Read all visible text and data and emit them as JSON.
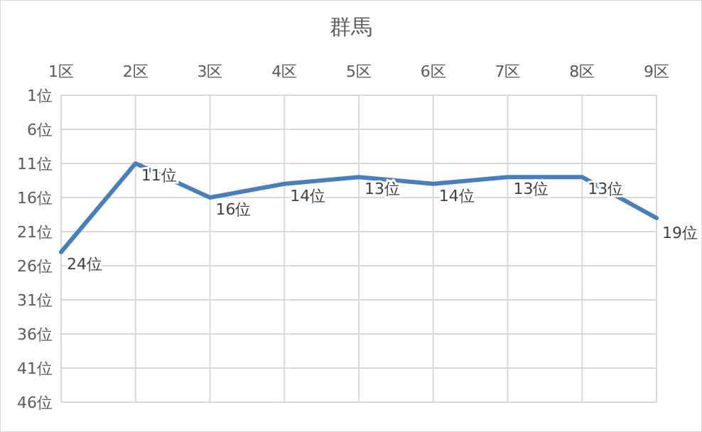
{
  "chart_data": {
    "type": "line",
    "title": "群馬",
    "categories": [
      "1区",
      "2区",
      "3区",
      "4区",
      "5区",
      "6区",
      "7区",
      "8区",
      "9区"
    ],
    "series": [
      {
        "color": "#4a7ebb",
        "values": [
          24,
          11,
          16,
          14,
          13,
          14,
          13,
          13,
          19
        ],
        "value_labels": [
          "24位",
          "11位",
          "16位",
          "14位",
          "13位",
          "14位",
          "13位",
          "13位",
          "19位"
        ]
      }
    ],
    "ylim": [
      46,
      1
    ],
    "yticks": [
      {
        "value": 1,
        "label": "1位"
      },
      {
        "value": 6,
        "label": "6位"
      },
      {
        "value": 11,
        "label": "11位"
      },
      {
        "value": 16,
        "label": "16位"
      },
      {
        "value": 21,
        "label": "21位"
      },
      {
        "value": 26,
        "label": "26位"
      },
      {
        "value": 31,
        "label": "31位"
      },
      {
        "value": 36,
        "label": "36位"
      },
      {
        "value": 41,
        "label": "41位"
      },
      {
        "value": 46,
        "label": "46位"
      }
    ],
    "grid": true,
    "line_style": "solid",
    "marker": "none"
  }
}
